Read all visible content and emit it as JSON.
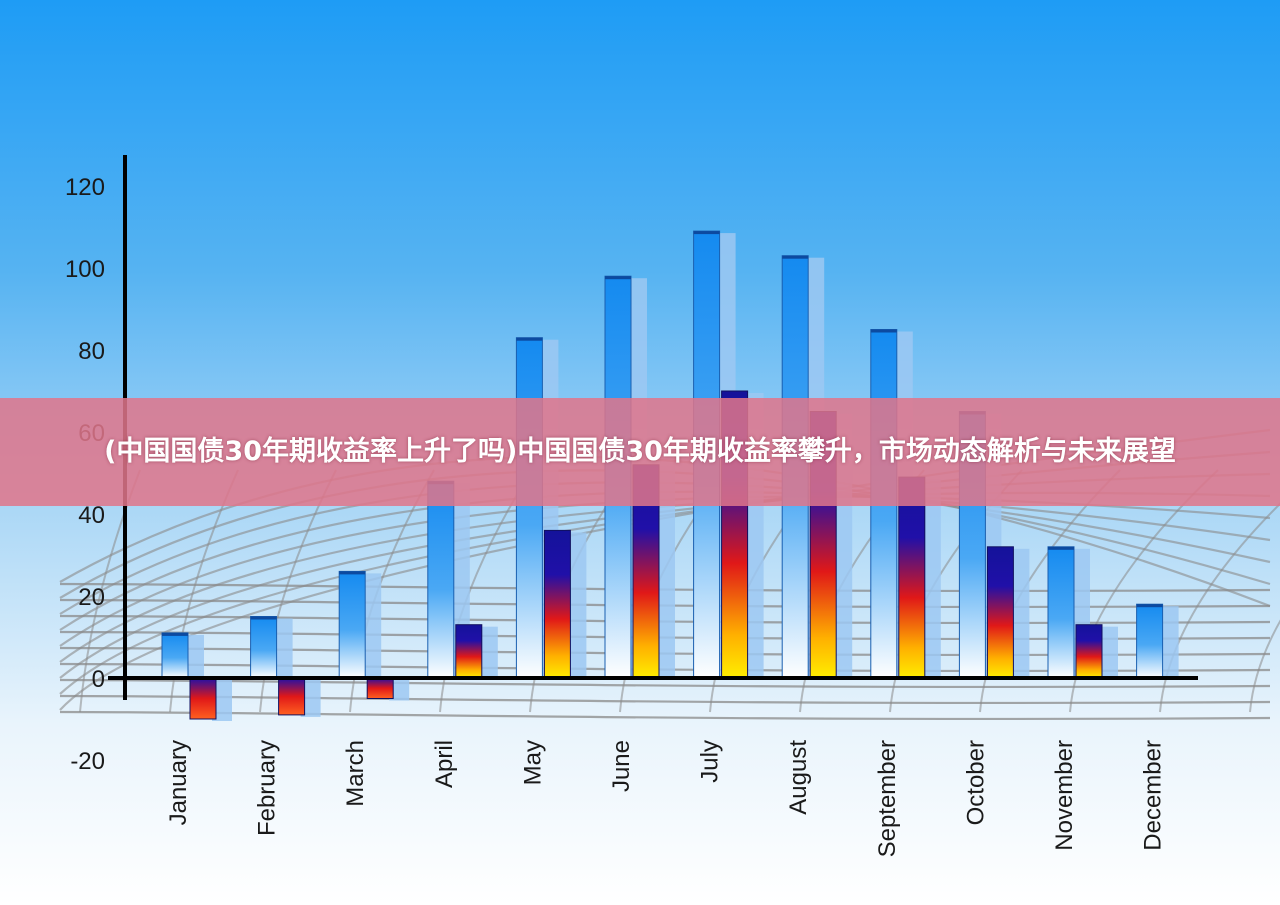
{
  "banner": {
    "title": "(中国国债30年期收益率上升了吗)中国国债30年期收益率攀升，市场动态解析与未来展望"
  },
  "colors": {
    "background_top": "#1e9cf5",
    "series_a": "#1a8ef0",
    "series_b_top": "#14129a",
    "series_b_mid": "#e01818",
    "series_b_bottom": "#ffee00",
    "banner": "#e0768a",
    "grid": "#8a8a8a"
  },
  "chart_data": {
    "type": "bar",
    "categories": [
      "January",
      "February",
      "March",
      "April",
      "May",
      "June",
      "July",
      "August",
      "September",
      "October",
      "November",
      "December"
    ],
    "series": [
      {
        "values": [
          11,
          15,
          26,
          48,
          83,
          98,
          109,
          103,
          85,
          65,
          32,
          18
        ]
      },
      {
        "values": [
          -10,
          -9,
          -5,
          13,
          36,
          52,
          70,
          65,
          49,
          32,
          13,
          null
        ]
      }
    ],
    "y_ticks": [
      "120",
      "100",
      "80",
      "60",
      "40",
      "20",
      "0",
      "-20"
    ],
    "ylim": [
      -20,
      120
    ],
    "grid": true,
    "legend": "none"
  }
}
